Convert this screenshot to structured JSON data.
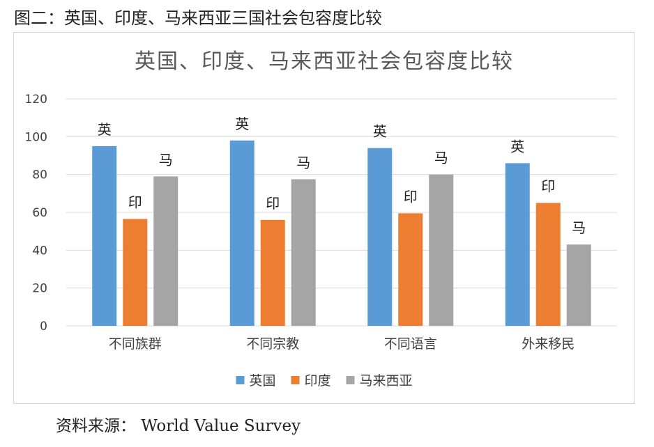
{
  "figure_caption": "图二：英国、印度、马来西亚三国社会包容度比较",
  "source_note": "资料来源：  World Value Survey",
  "colors": {
    "英国": "#5b9bd5",
    "印度": "#ed7d31",
    "马来西亚": "#a5a5a5",
    "grid": "#d9d9d9",
    "title": "#595959",
    "axis_text": "#404040"
  },
  "chart_data": {
    "type": "bar",
    "title": "英国、印度、马来西亚社会包容度比较",
    "categories": [
      "不同族群",
      "不同宗教",
      "不同语言",
      "外来移民"
    ],
    "series": [
      {
        "name": "英国",
        "label": "英",
        "values": [
          95,
          98,
          94,
          86
        ]
      },
      {
        "name": "印度",
        "label": "印",
        "values": [
          56.5,
          56,
          59.5,
          65
        ]
      },
      {
        "name": "马来西亚",
        "label": "马",
        "values": [
          79,
          77.5,
          80,
          43
        ]
      }
    ],
    "y_ticks": [
      "0",
      "20",
      "40",
      "60",
      "80",
      "100",
      "120"
    ],
    "ylim": [
      0,
      120
    ],
    "grid": true,
    "legend_position": "bottom"
  }
}
